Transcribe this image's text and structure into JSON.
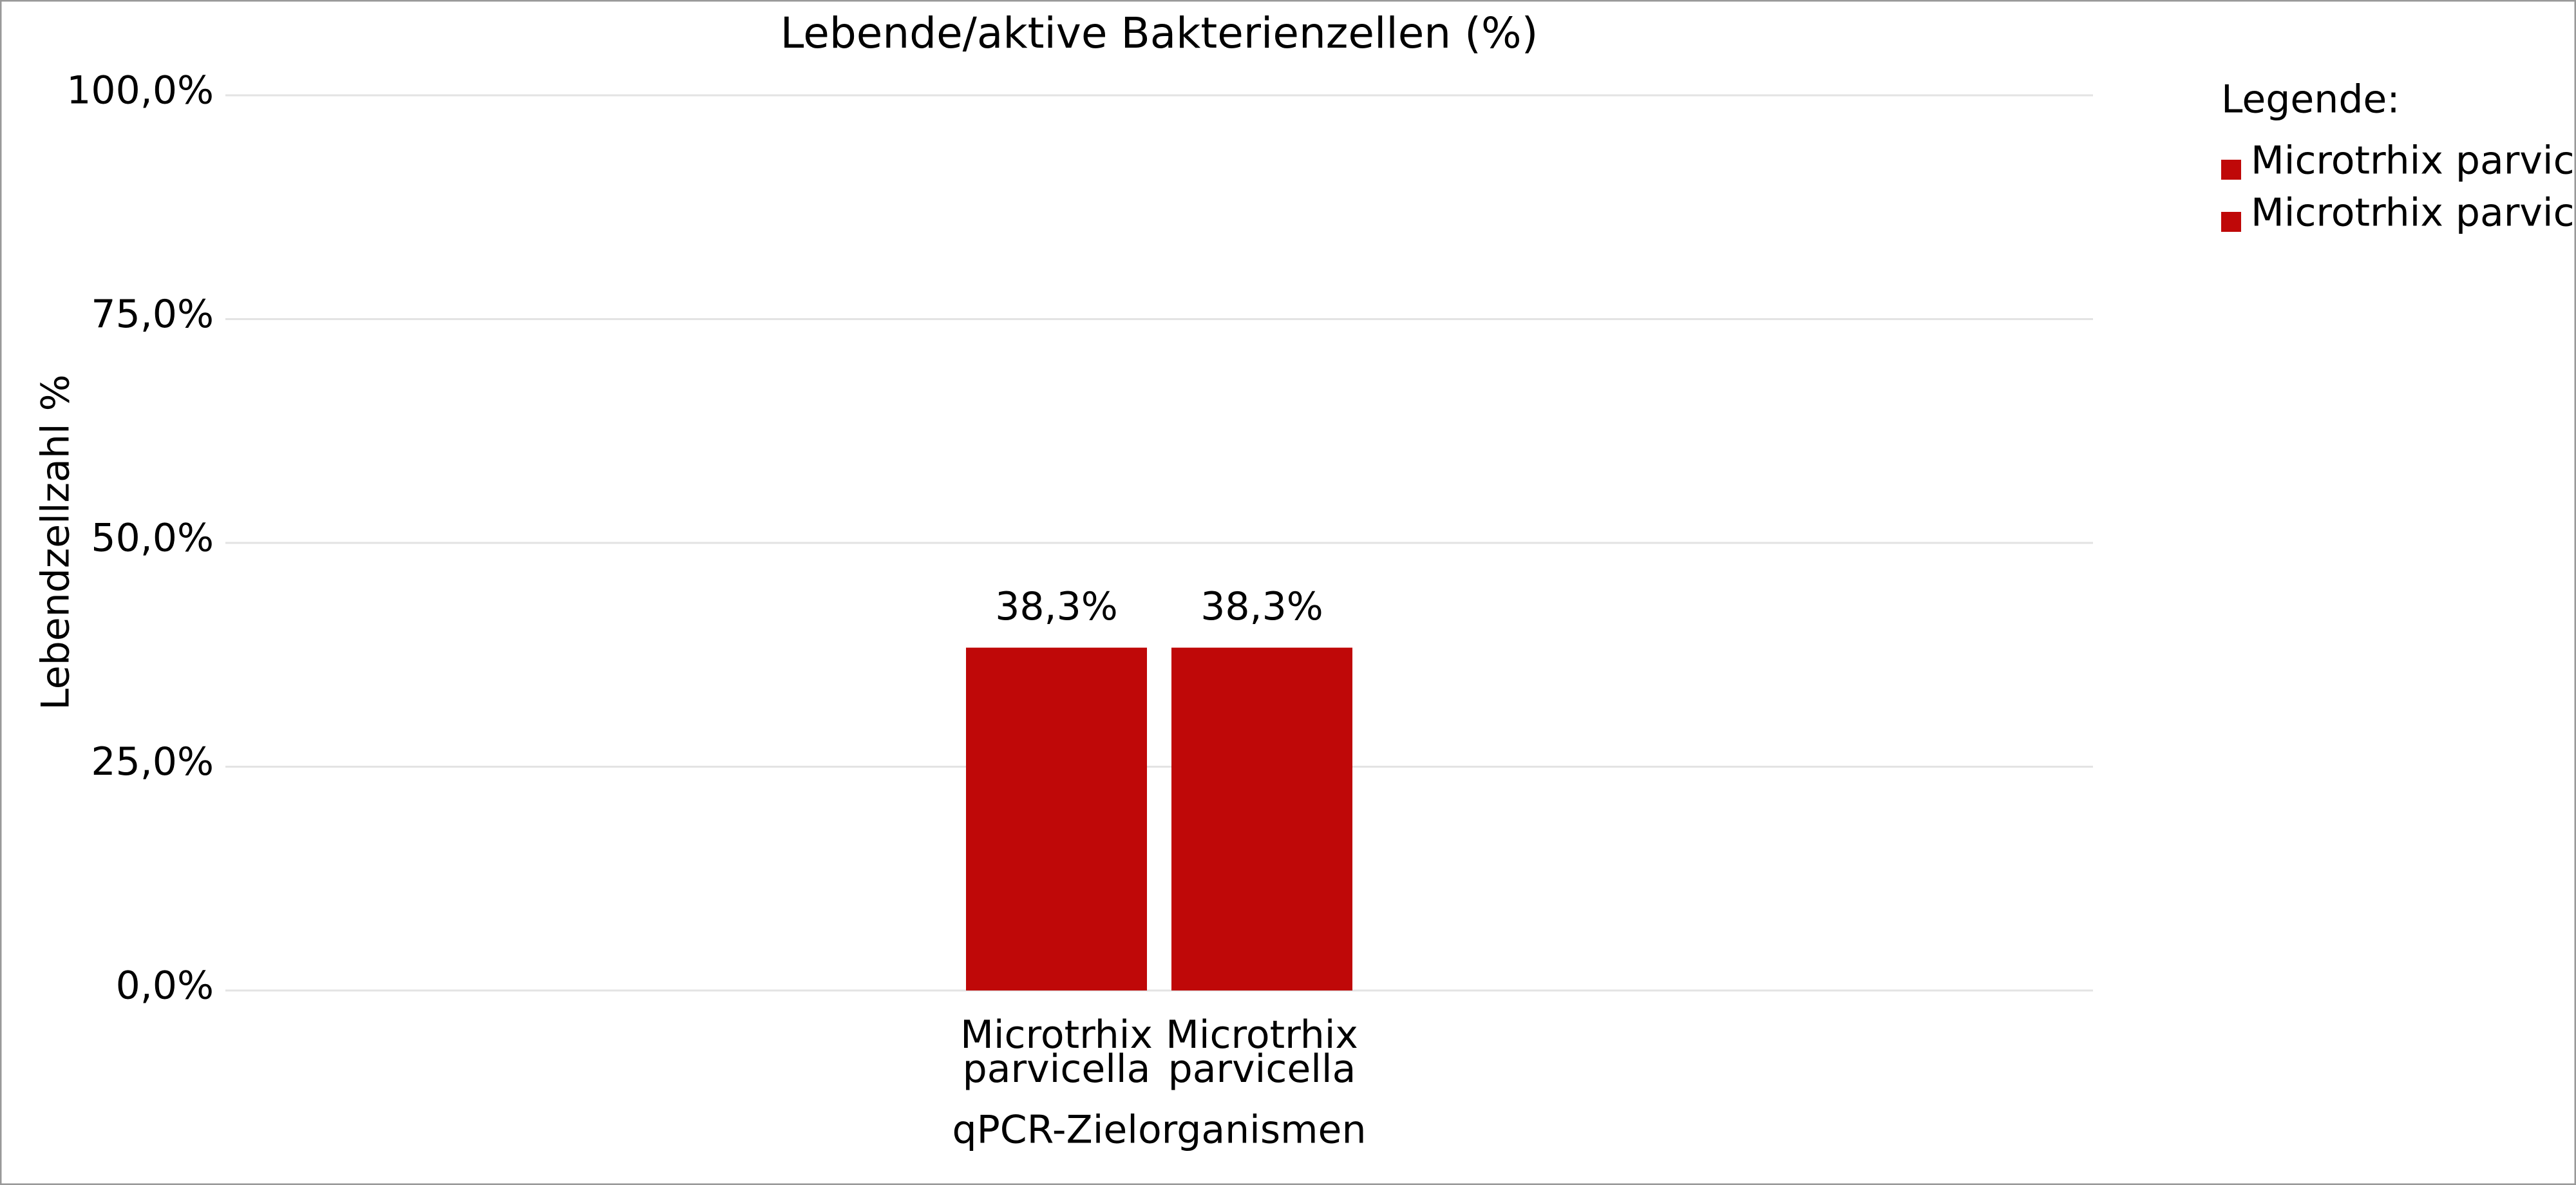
{
  "chart_data": {
    "type": "bar",
    "title": "Lebende/aktive Bakterienzellen (%)",
    "y_label": "Lebendzellzahl %",
    "x_label": "qPCR-Zielorganismen",
    "categories": [
      "Microtrhix parvicella",
      "Microtrhix parvicella"
    ],
    "values": [
      38.3,
      38.3
    ],
    "value_labels": [
      "38,3%",
      "38,3%"
    ],
    "color": "#bf0808",
    "ylim": [
      0,
      100
    ],
    "yticks": [
      {
        "value": 0,
        "label": "0,0%"
      },
      {
        "value": 25,
        "label": "25,0%"
      },
      {
        "value": 50,
        "label": "50,0%"
      },
      {
        "value": 75,
        "label": "75,0%"
      },
      {
        "value": 100,
        "label": "100,0%"
      }
    ],
    "grid": true,
    "legend": {
      "title": "Legende:",
      "position": "right"
    }
  }
}
